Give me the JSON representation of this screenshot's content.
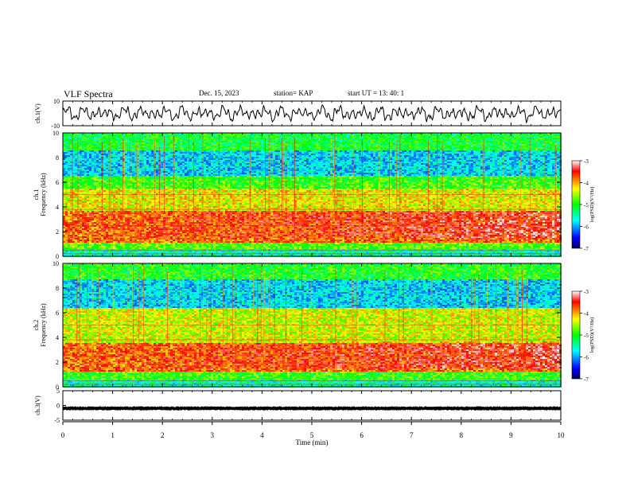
{
  "header": {
    "title": "VLF Spectra",
    "date": "Dec. 15, 2023",
    "station": "station= KAP",
    "start": "start  UT  =   13: 40: 1"
  },
  "chart_data": [
    {
      "type": "line",
      "panel": "ch1-waveform",
      "ylabel": "ch.1(V)",
      "ylim": [
        -10,
        10
      ],
      "yticks": [
        "10",
        "-10"
      ],
      "xlim": [
        0,
        10
      ],
      "description_values": "dense oscillating waveform, amplitude mostly within ±5 V",
      "color": "#000000"
    },
    {
      "type": "heatmap",
      "panel": "ch1-spectrogram",
      "ylabel": "ch.1\nFrequency (kHz)",
      "ylabel_lines": [
        "ch.1",
        "Frequency (kHz)"
      ],
      "ylim": [
        0,
        10
      ],
      "yticks": [
        "0",
        "2",
        "4",
        "6",
        "8",
        "10"
      ],
      "xlim": [
        0,
        10
      ],
      "colorbar": {
        "label": "log(PSD)(V²/Hz)",
        "range": [
          -7,
          -3
        ],
        "ticks": [
          "-3",
          "-4",
          "-5",
          "-6",
          "-7"
        ],
        "colormap": [
          "#000080",
          "#0000ff",
          "#00ffff",
          "#00ff00",
          "#ffff00",
          "#ff0000",
          "#ffffff"
        ]
      },
      "bands_khz_log_psd": [
        {
          "f": [
            0,
            0.6
          ],
          "v": -5.5
        },
        {
          "f": [
            0.6,
            1.2
          ],
          "v": -4.8
        },
        {
          "f": [
            1.2,
            3.8
          ],
          "v": -3.8
        },
        {
          "f": [
            3.8,
            5.5
          ],
          "v": -4.3
        },
        {
          "f": [
            5.5,
            6.6
          ],
          "v": -4.9
        },
        {
          "f": [
            6.6,
            8.6
          ],
          "v": -5.8
        },
        {
          "f": [
            8.6,
            10
          ],
          "v": -5.1
        }
      ]
    },
    {
      "type": "heatmap",
      "panel": "ch2-spectrogram",
      "ylabel": "ch.2\nFrequency (kHz)",
      "ylabel_lines": [
        "ch.2",
        "Frequency (kHz)"
      ],
      "ylim": [
        0,
        10
      ],
      "yticks": [
        "0",
        "2",
        "4",
        "6",
        "8",
        "10"
      ],
      "xlim": [
        0,
        10
      ],
      "colorbar": {
        "label": "log(PSD)(V²/Hz)",
        "range": [
          -7,
          -3
        ],
        "ticks": [
          "-3",
          "-4",
          "-5",
          "-6",
          "-7"
        ]
      },
      "bands_khz_log_psd": [
        {
          "f": [
            0,
            0.6
          ],
          "v": -5.5
        },
        {
          "f": [
            0.6,
            1.3
          ],
          "v": -4.9
        },
        {
          "f": [
            1.3,
            3.6
          ],
          "v": -3.8
        },
        {
          "f": [
            3.6,
            6.4
          ],
          "v": -4.4
        },
        {
          "f": [
            6.4,
            8.8
          ],
          "v": -5.8
        },
        {
          "f": [
            8.8,
            10
          ],
          "v": -5.0
        }
      ]
    },
    {
      "type": "line",
      "panel": "ch3-waveform",
      "ylabel": "ch.3(V)",
      "ylim": [
        -5,
        5
      ],
      "yticks": [
        "5",
        "0",
        "-5"
      ],
      "xlim": [
        0,
        10
      ],
      "xlabel": "Time  (min)",
      "xticks": [
        "0",
        "1",
        "2",
        "3",
        "4",
        "5",
        "6",
        "7",
        "8",
        "9",
        "10"
      ],
      "description_values": "near-constant signal around -1 V with small rapid oscillation",
      "color": "#000000"
    }
  ]
}
